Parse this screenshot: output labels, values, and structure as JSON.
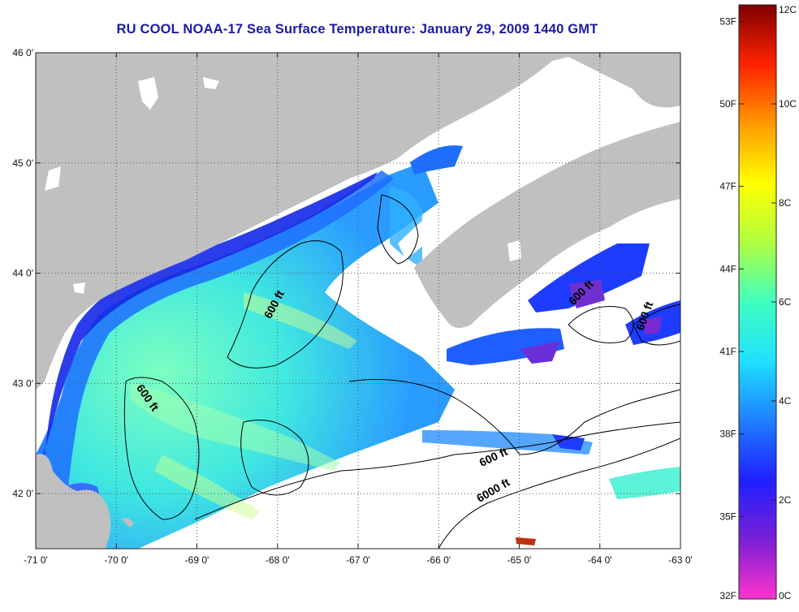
{
  "title": "RU COOL  NOAA-17  Sea Surface Temperature:  January 29, 2009 1440 GMT",
  "map": {
    "lon_range": [
      -71.0,
      -63.0
    ],
    "lat_range": [
      41.5,
      46.0
    ],
    "lon_ticks": [
      {
        "value": -71,
        "label": "-71 0'"
      },
      {
        "value": -70,
        "label": "-70 0'"
      },
      {
        "value": -69,
        "label": "-69 0'"
      },
      {
        "value": -68,
        "label": "-68 0'"
      },
      {
        "value": -67,
        "label": "-67 0'"
      },
      {
        "value": -66,
        "label": "-66 0'"
      },
      {
        "value": -65,
        "label": "-65 0'"
      },
      {
        "value": -64,
        "label": "-64 0'"
      },
      {
        "value": -63,
        "label": "-63 0'"
      }
    ],
    "lat_ticks": [
      {
        "value": 46,
        "label": "46 0'"
      },
      {
        "value": 45,
        "label": "45 0'"
      },
      {
        "value": 44,
        "label": "44 0'"
      },
      {
        "value": 43,
        "label": "43 0'"
      },
      {
        "value": 42,
        "label": "42 0'"
      }
    ],
    "grid": "dotted",
    "land_color": "#c0c0c0",
    "contour_labels": [
      {
        "text": "600 ft",
        "lon": -68.0,
        "lat": 43.7,
        "angle": -62
      },
      {
        "text": "600 ft",
        "lon": -69.65,
        "lat": 42.85,
        "angle": 55
      },
      {
        "text": "600 ft",
        "lon": -64.2,
        "lat": 43.8,
        "angle": -45
      },
      {
        "text": "600 ft",
        "lon": -63.4,
        "lat": 43.6,
        "angle": -70
      },
      {
        "text": "600 ft",
        "lon": -65.3,
        "lat": 42.3,
        "angle": -25
      },
      {
        "text": "6000 ft",
        "lon": -65.3,
        "lat": 42.0,
        "angle": -30
      }
    ]
  },
  "colorbar": {
    "f_ticks": [
      {
        "value": 53,
        "label": "53F"
      },
      {
        "value": 50,
        "label": "50F"
      },
      {
        "value": 47,
        "label": "47F"
      },
      {
        "value": 44,
        "label": "44F"
      },
      {
        "value": 41,
        "label": "41F"
      },
      {
        "value": 38,
        "label": "38F"
      },
      {
        "value": 35,
        "label": "35F"
      },
      {
        "value": 32,
        "label": "32F"
      }
    ],
    "c_ticks": [
      {
        "value": 12,
        "label": "12C"
      },
      {
        "value": 10,
        "label": "10C"
      },
      {
        "value": 8,
        "label": "8C"
      },
      {
        "value": 6,
        "label": "6C"
      },
      {
        "value": 4,
        "label": "4C"
      },
      {
        "value": 2,
        "label": "2C"
      },
      {
        "value": 0,
        "label": "0C"
      }
    ],
    "c_range": [
      0,
      12
    ],
    "stops": [
      "#ff33cc",
      "#7a1fd6",
      "#1f1fff",
      "#1f7fff",
      "#1fe0ff",
      "#40ffc0",
      "#b0ff40",
      "#ffff00",
      "#ff9900",
      "#ff2200",
      "#800000"
    ]
  }
}
